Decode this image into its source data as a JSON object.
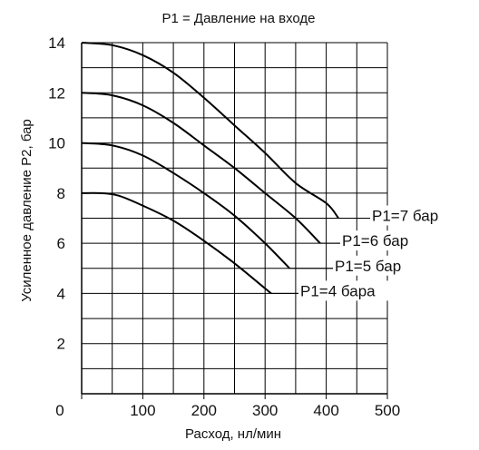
{
  "chart_data": {
    "type": "line",
    "title": "P1 = Давление на входе",
    "xlabel": "Расход, нл/мин",
    "ylabel": "Усиленное давление P2, бар",
    "xlim": [
      0,
      500
    ],
    "ylim": [
      0,
      14
    ],
    "x_ticks": [
      0,
      100,
      200,
      300,
      400,
      500
    ],
    "y_ticks": [
      2,
      4,
      6,
      8,
      10,
      12,
      14
    ],
    "x_tick_labels": [
      "0",
      "100",
      "200",
      "300",
      "400",
      "500"
    ],
    "y_tick_labels": [
      "2",
      "4",
      "6",
      "8",
      "10",
      "12",
      "14"
    ],
    "grid": true,
    "grid_x_step": 50,
    "grid_y_step": 1,
    "series": [
      {
        "name": "P1=7 бар",
        "x": [
          0,
          50,
          100,
          150,
          200,
          250,
          300,
          350,
          400,
          420
        ],
        "y": [
          14.0,
          13.9,
          13.5,
          12.8,
          11.8,
          10.7,
          9.6,
          8.4,
          7.6,
          7.0
        ]
      },
      {
        "name": "P1=6 бар",
        "x": [
          0,
          50,
          100,
          150,
          200,
          250,
          300,
          350,
          390
        ],
        "y": [
          12.0,
          11.9,
          11.5,
          10.8,
          9.9,
          9.0,
          8.0,
          7.0,
          6.0
        ]
      },
      {
        "name": "P1=5 бар",
        "x": [
          0,
          50,
          100,
          150,
          200,
          250,
          300,
          340
        ],
        "y": [
          10.0,
          9.9,
          9.5,
          8.8,
          8.0,
          7.1,
          6.0,
          5.0
        ]
      },
      {
        "name": "P1=4 бара",
        "x": [
          0,
          30,
          60,
          100,
          150,
          200,
          250,
          300,
          310
        ],
        "y": [
          8.0,
          8.0,
          7.9,
          7.5,
          6.9,
          6.1,
          5.2,
          4.2,
          4.0
        ]
      }
    ]
  }
}
